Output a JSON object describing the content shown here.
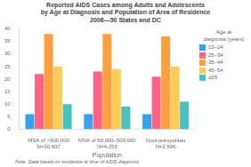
{
  "chart_data": {
    "type": "bar",
    "title": "Reported AIDS Cases among Adults and Adolescents\nby Age at Diagnosis and Population of Area of Residence\n2006—50 States and DC",
    "xlabel": "Population",
    "footnote": "Note. Data based on residence at time of AIDS diagnosis.",
    "legend_title": "Age at\ndiagnosis (years)",
    "legend": "right",
    "grid": false,
    "categories": [
      "MSA of >500,000\nN=30,607",
      "MSA of 50,000–500,000\nN=4,259",
      "Nonmetropolitan\nN=2,696"
    ],
    "series": [
      {
        "name": "13–24",
        "values": [
          6,
          6,
          6
        ]
      },
      {
        "name": "25–34",
        "values": [
          22,
          23,
          21
        ]
      },
      {
        "name": "35–44",
        "values": [
          38,
          38,
          37
        ]
      },
      {
        "name": "45–54",
        "values": [
          25,
          24,
          25
        ]
      },
      {
        "name": "≥55",
        "values": [
          10,
          9,
          11
        ]
      }
    ],
    "ylim": [
      0,
      40
    ],
    "yticks": [
      0,
      5,
      10,
      15,
      20,
      25,
      30,
      35,
      40
    ]
  }
}
